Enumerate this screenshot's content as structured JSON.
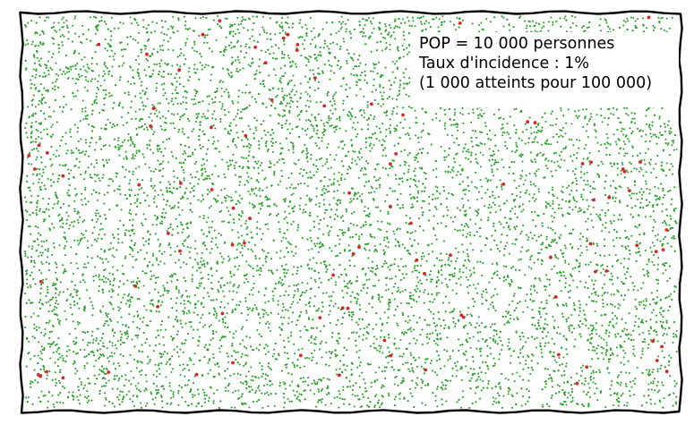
{
  "chart_data": {
    "type": "scatter",
    "title": "",
    "xlabel": "",
    "ylabel": "",
    "axes_visible": false,
    "grid": false,
    "style": "hand-drawn (xkcd) frame",
    "series": [
      {
        "name": "",
        "color": "#2ca02c",
        "count": 9900
      },
      {
        "name": "",
        "color": "#d62728",
        "count": 100
      }
    ],
    "annotation": {
      "lines": [
        "POP = 10 000 personnes",
        "Taux d'incidence : 1%",
        "(1 000 atteints pour 100 000)"
      ],
      "placement": "top-right"
    },
    "population": 10000,
    "incidence_rate_percent": 1,
    "affected_per_100000": 1000
  }
}
